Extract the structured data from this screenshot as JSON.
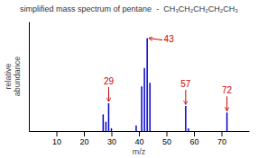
{
  "chart_data": {
    "type": "bar",
    "title": "simplified mass spectrum of pentane  -  CH₃CH₂CH₂CH₂CH₃",
    "xlabel": "m/z",
    "ylabel": "relative\nabundance",
    "x": [
      27,
      28,
      29,
      30,
      39,
      41,
      42,
      43,
      44,
      57,
      58,
      72
    ],
    "values": [
      0.18,
      0.1,
      0.3,
      0.03,
      0.06,
      0.48,
      0.68,
      1.0,
      0.52,
      0.27,
      0.03,
      0.2
    ],
    "color": "#0000cc",
    "xlim": [
      0,
      80
    ],
    "ylim": [
      0,
      1.18
    ],
    "xticks": [
      10,
      20,
      30,
      40,
      50,
      60,
      70
    ],
    "tick_labels": "x",
    "annotations": [
      {
        "text": "29",
        "x": 29,
        "y": 0.3,
        "color": "#cc0000"
      },
      {
        "text": "43",
        "x": 43,
        "y": 1.0,
        "color": "#cc0000"
      },
      {
        "text": "57",
        "x": 57,
        "y": 0.27,
        "color": "#cc0000"
      },
      {
        "text": "72",
        "x": 72,
        "y": 0.2,
        "color": "#cc0000"
      }
    ]
  }
}
